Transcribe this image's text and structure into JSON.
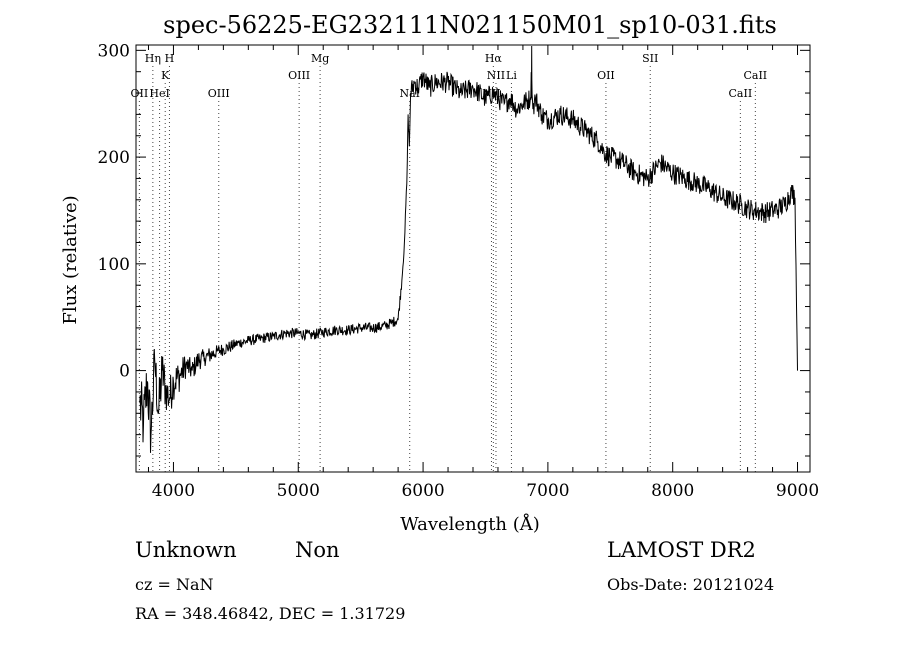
{
  "chart_data": {
    "type": "line",
    "title": "spec-56225-EG232111N021150M01_sp10-031.fits",
    "xlabel": "Wavelength (Å)",
    "ylabel": "Flux (relative)",
    "xlim": [
      3700,
      9100
    ],
    "ylim": [
      -95,
      305
    ],
    "xticks": [
      4000,
      5000,
      6000,
      7000,
      8000,
      9000
    ],
    "yticks": [
      0,
      100,
      200,
      300
    ],
    "grid": false,
    "series": [
      {
        "x": [
          3730,
          3760,
          3790,
          3820,
          3850,
          3880,
          3910,
          3940,
          3970,
          4000,
          4050,
          4100,
          4150,
          4200,
          4250,
          4300,
          4350,
          4400,
          4450,
          4500,
          4600,
          4700,
          4800,
          4900,
          5000,
          5100,
          5200,
          5300,
          5400,
          5500,
          5600,
          5700,
          5750,
          5800,
          5830,
          5850,
          5870,
          5880,
          5890,
          5900,
          5930,
          5960,
          6000,
          6050,
          6100,
          6200,
          6300,
          6400,
          6500,
          6560,
          6600,
          6650,
          6700,
          6750,
          6800,
          6860,
          6870,
          6880,
          6900,
          6950,
          7000,
          7100,
          7200,
          7300,
          7400,
          7450,
          7500,
          7550,
          7600,
          7650,
          7700,
          7800,
          7900,
          8000,
          8100,
          8200,
          8300,
          8400,
          8500,
          8550,
          8600,
          8650,
          8700,
          8750,
          8800,
          8850,
          8900,
          8950,
          8980,
          9000
        ],
        "y": [
          -30,
          -50,
          -10,
          -60,
          10,
          -40,
          0,
          -20,
          -25,
          -10,
          -5,
          5,
          0,
          10,
          12,
          15,
          18,
          20,
          22,
          25,
          28,
          30,
          32,
          35,
          35,
          33,
          36,
          38,
          38,
          40,
          40,
          42,
          45,
          48,
          85,
          120,
          175,
          240,
          210,
          260,
          270,
          265,
          275,
          265,
          270,
          270,
          260,
          265,
          255,
          260,
          255,
          250,
          255,
          245,
          250,
          255,
          280,
          245,
          255,
          240,
          235,
          240,
          235,
          225,
          215,
          205,
          200,
          198,
          195,
          190,
          185,
          180,
          195,
          185,
          180,
          175,
          170,
          162,
          158,
          155,
          152,
          150,
          149,
          148,
          150,
          152,
          156,
          168,
          162,
          0
        ],
        "noise": [
          30,
          30,
          30,
          30,
          25,
          25,
          25,
          20,
          20,
          18,
          15,
          12,
          10,
          10,
          8,
          8,
          6,
          6,
          6,
          5,
          5,
          5,
          5,
          5,
          5,
          5,
          5,
          5,
          5,
          5,
          5,
          5,
          5,
          5,
          5,
          5,
          5,
          5,
          5,
          10,
          10,
          10,
          10,
          10,
          10,
          10,
          10,
          10,
          10,
          10,
          10,
          10,
          10,
          10,
          10,
          10,
          10,
          10,
          10,
          10,
          10,
          10,
          10,
          10,
          10,
          10,
          10,
          10,
          10,
          10,
          10,
          10,
          10,
          10,
          10,
          10,
          10,
          10,
          10,
          10,
          10,
          10,
          10,
          10,
          10,
          10,
          10,
          10,
          10,
          0
        ]
      }
    ],
    "lines": [
      {
        "label": "Hη",
        "x": 3835,
        "row": 1
      },
      {
        "label": "H",
        "x": 3968,
        "row": 1
      },
      {
        "label": "K",
        "x": 3934,
        "row": 2
      },
      {
        "label": "OII",
        "x": 3727,
        "row": 3
      },
      {
        "label": "HeI",
        "x": 3889,
        "row": 3
      },
      {
        "label": "OIII",
        "x": 4363,
        "row": 3
      },
      {
        "label": "Mg",
        "x": 5175,
        "row": 1
      },
      {
        "label": "OIII",
        "x": 5007,
        "row": 2
      },
      {
        "label": "NaI",
        "x": 5893,
        "row": 3
      },
      {
        "label": "Hα",
        "x": 6563,
        "row": 1
      },
      {
        "label": "NII",
        "x": 6584,
        "row": 2
      },
      {
        "label": "Li",
        "x": 6708,
        "row": 2
      },
      {
        "label": "NII",
        "x": 6548,
        "row": 3
      },
      {
        "label": "SII",
        "x": 7820,
        "row": 1
      },
      {
        "label": "OII",
        "x": 7465,
        "row": 2
      },
      {
        "label": "CaII",
        "x": 8662,
        "row": 2
      },
      {
        "label": "CaII",
        "x": 8542,
        "row": 3
      }
    ]
  },
  "info": {
    "obj_class": "Unknown",
    "obj_subclass": "Non",
    "survey": "LAMOST DR2",
    "cz": "cz = NaN",
    "obs_date": "Obs-Date: 20121024",
    "radec": "RA = 348.46842, DEC =   1.31729"
  }
}
